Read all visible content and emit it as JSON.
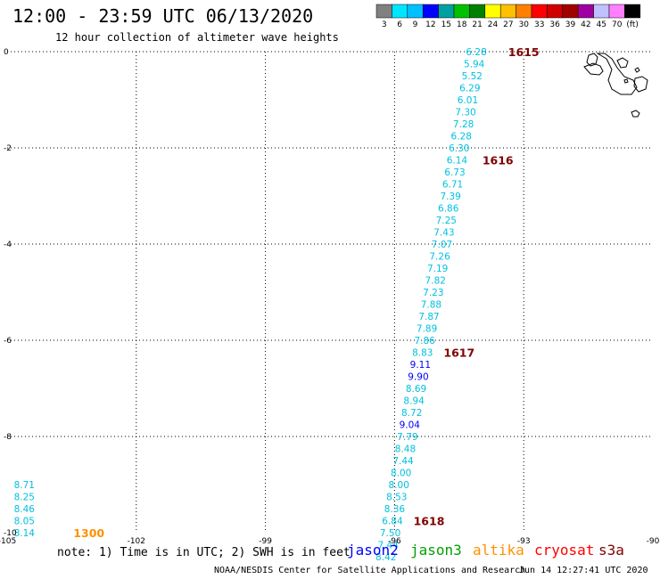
{
  "header": {
    "title": "12:00 - 23:59 UTC 06/13/2020",
    "subtitle": "12 hour collection of altimeter wave heights"
  },
  "colorbar": {
    "swatches": [
      "#808080",
      "#00e5ff",
      "#00c0ff",
      "#0000ff",
      "#00a0a0",
      "#00c000",
      "#008000",
      "#ffff00",
      "#ffc000",
      "#ff8000",
      "#ff0000",
      "#d00000",
      "#a00000",
      "#a000a0",
      "#c0c0ff",
      "#ff80ff",
      "#000000"
    ],
    "labels": [
      "3",
      "6",
      "9",
      "12",
      "15",
      "18",
      "21",
      "24",
      "27",
      "30",
      "33",
      "36",
      "39",
      "42",
      "45",
      "70",
      "(ft)"
    ]
  },
  "axes": {
    "x_ticks": [
      "-105",
      "-102",
      "-99",
      "-96",
      "-93",
      "-90"
    ],
    "y_ticks": [
      "0",
      "-2",
      "-4",
      "-6",
      "-8",
      "-10"
    ],
    "x_values": [
      -105,
      -102,
      -99,
      -96,
      -93,
      -90
    ],
    "y_values": [
      0,
      -2,
      -4,
      -6,
      -8,
      -10
    ],
    "xlim": [
      -105,
      -90
    ],
    "ylim": [
      -10,
      0
    ]
  },
  "track": {
    "points": [
      {
        "lon": -94.1,
        "lat": 0.0,
        "v": "6.28",
        "c": "#00c0e0"
      },
      {
        "lon": -94.15,
        "lat": -0.25,
        "v": "5.94",
        "c": "#00c0e0"
      },
      {
        "lon": -94.2,
        "lat": -0.5,
        "v": "5.52",
        "c": "#00c0e0"
      },
      {
        "lon": -94.25,
        "lat": -0.75,
        "v": "6.29",
        "c": "#00c0e0"
      },
      {
        "lon": -94.3,
        "lat": -1.0,
        "v": "6.01",
        "c": "#00c0e0"
      },
      {
        "lon": -94.35,
        "lat": -1.25,
        "v": "7.30",
        "c": "#00c0e0"
      },
      {
        "lon": -94.4,
        "lat": -1.5,
        "v": "7.28",
        "c": "#00c0e0"
      },
      {
        "lon": -94.45,
        "lat": -1.75,
        "v": "6.28",
        "c": "#00c0e0"
      },
      {
        "lon": -94.5,
        "lat": -2.0,
        "v": "6.30",
        "c": "#00c0e0"
      },
      {
        "lon": -94.55,
        "lat": -2.25,
        "v": "6.14",
        "c": "#00c0e0"
      },
      {
        "lon": -94.6,
        "lat": -2.5,
        "v": "6.73",
        "c": "#00c0e0"
      },
      {
        "lon": -94.65,
        "lat": -2.75,
        "v": "6.71",
        "c": "#00c0e0"
      },
      {
        "lon": -94.7,
        "lat": -3.0,
        "v": "7.39",
        "c": "#00c0e0"
      },
      {
        "lon": -94.75,
        "lat": -3.25,
        "v": "6.86",
        "c": "#00c0e0"
      },
      {
        "lon": -94.8,
        "lat": -3.5,
        "v": "7.25",
        "c": "#00c0e0"
      },
      {
        "lon": -94.85,
        "lat": -3.75,
        "v": "7.43",
        "c": "#00c0e0"
      },
      {
        "lon": -94.9,
        "lat": -4.0,
        "v": "7.07",
        "c": "#00c0e0"
      },
      {
        "lon": -94.95,
        "lat": -4.25,
        "v": "7.26",
        "c": "#00c0e0"
      },
      {
        "lon": -95.0,
        "lat": -4.5,
        "v": "7.19",
        "c": "#00c0e0"
      },
      {
        "lon": -95.05,
        "lat": -4.75,
        "v": "7.82",
        "c": "#00c0e0"
      },
      {
        "lon": -95.1,
        "lat": -5.0,
        "v": "7.23",
        "c": "#00c0e0"
      },
      {
        "lon": -95.15,
        "lat": -5.25,
        "v": "7.88",
        "c": "#00c0e0"
      },
      {
        "lon": -95.2,
        "lat": -5.5,
        "v": "7.87",
        "c": "#00c0e0"
      },
      {
        "lon": -95.25,
        "lat": -5.75,
        "v": "7.89",
        "c": "#00c0e0"
      },
      {
        "lon": -95.3,
        "lat": -6.0,
        "v": "7.86",
        "c": "#00c0e0"
      },
      {
        "lon": -95.35,
        "lat": -6.25,
        "v": "8.83",
        "c": "#00c0e0"
      },
      {
        "lon": -95.4,
        "lat": -6.5,
        "v": "9.11",
        "c": "#0000ff"
      },
      {
        "lon": -95.45,
        "lat": -6.75,
        "v": "9.90",
        "c": "#0000ff"
      },
      {
        "lon": -95.5,
        "lat": -7.0,
        "v": "8.69",
        "c": "#00c0e0"
      },
      {
        "lon": -95.55,
        "lat": -7.25,
        "v": "8.94",
        "c": "#00c0e0"
      },
      {
        "lon": -95.6,
        "lat": -7.5,
        "v": "8.72",
        "c": "#00c0e0"
      },
      {
        "lon": -95.65,
        "lat": -7.75,
        "v": "9.04",
        "c": "#0000ff"
      },
      {
        "lon": -95.7,
        "lat": -8.0,
        "v": "7.79",
        "c": "#00c0e0"
      },
      {
        "lon": -95.75,
        "lat": -8.25,
        "v": "8.48",
        "c": "#00c0e0"
      },
      {
        "lon": -95.8,
        "lat": -8.5,
        "v": "7.44",
        "c": "#00c0e0"
      },
      {
        "lon": -95.85,
        "lat": -8.75,
        "v": "8.00",
        "c": "#00c0e0"
      },
      {
        "lon": -95.9,
        "lat": -9.0,
        "v": "8.00",
        "c": "#00c0e0"
      },
      {
        "lon": -95.95,
        "lat": -9.25,
        "v": "8.53",
        "c": "#00c0e0"
      },
      {
        "lon": -96.0,
        "lat": -9.5,
        "v": "8.36",
        "c": "#00c0e0"
      },
      {
        "lon": -96.05,
        "lat": -9.75,
        "v": "6.84",
        "c": "#00c0e0"
      },
      {
        "lon": -96.1,
        "lat": -10.0,
        "v": "7.50",
        "c": "#00c0e0"
      },
      {
        "lon": -96.15,
        "lat": -10.25,
        "v": "7.44",
        "c": "#00c0e0"
      },
      {
        "lon": -96.2,
        "lat": -10.5,
        "v": "8.42",
        "c": "#00c0e0"
      }
    ],
    "times": [
      {
        "lon": -93.0,
        "lat": 0.0,
        "t": "1615"
      },
      {
        "lon": -93.6,
        "lat": -2.25,
        "t": "1616"
      },
      {
        "lon": -94.5,
        "lat": -6.25,
        "t": "1617"
      },
      {
        "lon": -95.2,
        "lat": -9.75,
        "t": "1618"
      }
    ],
    "time_color": "#800000"
  },
  "track2": {
    "points": [
      {
        "lon": -104.6,
        "lat": -9.0,
        "v": "8.71",
        "c": "#00c0e0"
      },
      {
        "lon": -104.6,
        "lat": -9.25,
        "v": "8.25",
        "c": "#00c0e0"
      },
      {
        "lon": -104.6,
        "lat": -9.5,
        "v": "8.46",
        "c": "#00c0e0"
      },
      {
        "lon": -104.6,
        "lat": -9.75,
        "v": "8.05",
        "c": "#00c0e0"
      },
      {
        "lon": -104.6,
        "lat": -10.0,
        "v": "8.14",
        "c": "#00c0e0"
      }
    ],
    "times": [
      {
        "lon": -103.1,
        "lat": -10.0,
        "t": "1300"
      }
    ],
    "time_color": "#ff9000"
  },
  "footer": {
    "note": "note: 1) Time is in UTC; 2) SWH is in feet",
    "satellites": [
      {
        "name": "jason2",
        "color": "#0000ff"
      },
      {
        "name": "jason3",
        "color": "#00a000"
      },
      {
        "name": "altika",
        "color": "#ff9000"
      },
      {
        "name": "cryosat",
        "color": "#ff0000"
      },
      {
        "name": "s3a",
        "color": "#800000"
      }
    ],
    "credit": "NOAA/NESDIS Center for Satellite Applications and Research",
    "stamp": "Jun 14 12:27:41 UTC 2020"
  }
}
